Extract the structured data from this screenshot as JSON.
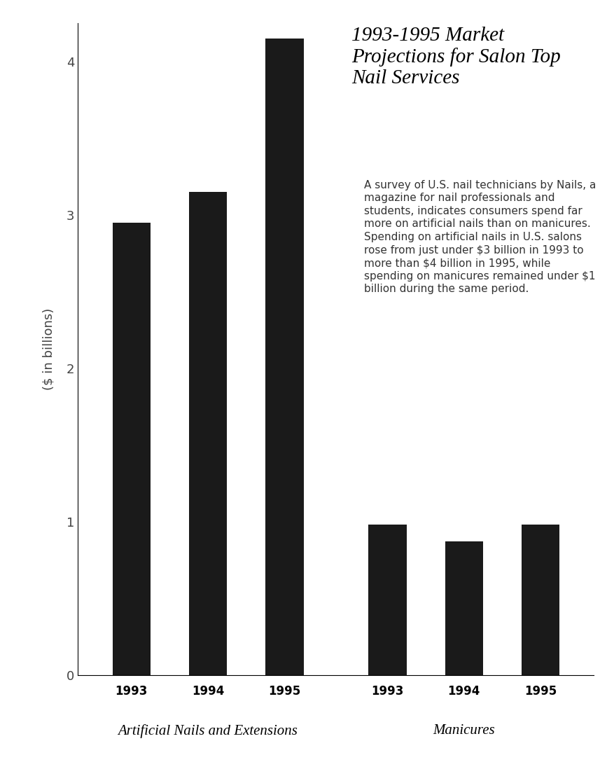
{
  "chart_data": {
    "type": "bar",
    "title": "1993-1995 Market Projections for Salon Top Nail Services",
    "annotation": "A survey of U.S. nail technicians by Nails, a magazine for nail professionals and students, indicates consumers spend far more on artificial nails than on manicures. Spending on artificial nails in U.S. salons rose from just under $3 billion in 1993 to more than $4 billion in 1995, while spending on manicures remained under $1 billion during the same period.",
    "y_label": "($ in billions)",
    "categories": [
      "1993",
      "1994",
      "1995"
    ],
    "series": [
      {
        "name": "Artificial Nails and Extensions",
        "values": [
          2.95,
          3.15,
          4.15
        ]
      },
      {
        "name": "Manicures",
        "values": [
          0.98,
          0.87,
          0.98
        ]
      }
    ],
    "color": "#1a1a1a",
    "ylim": [
      0,
      4.25
    ],
    "yticks": [
      0,
      1,
      2,
      3,
      4
    ]
  }
}
